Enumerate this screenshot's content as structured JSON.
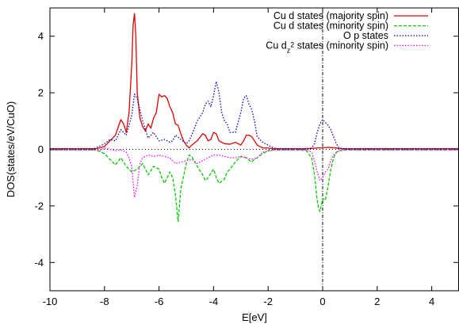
{
  "chart_data": {
    "type": "line",
    "xlabel": "E[eV]",
    "ylabel": "DOS(states/eV/CuO)",
    "xlim": [
      -10,
      5
    ],
    "ylim": [
      -5,
      5
    ],
    "x_ticks": [
      -10,
      -8,
      -6,
      -4,
      -2,
      0,
      2,
      4
    ],
    "y_ticks": [
      -4,
      -2,
      0,
      2,
      4
    ],
    "grid": false,
    "legend_position": "top-right",
    "reference_lines": [
      {
        "axis": "y",
        "value": 0,
        "style": "dotted"
      },
      {
        "axis": "x",
        "value": 0,
        "style": "dash-dot"
      }
    ],
    "series": [
      {
        "name": "Cu d states (majority spin)",
        "color": "#e00000",
        "dash": "solid",
        "x": [
          -10,
          -8.3,
          -8,
          -7.8,
          -7.6,
          -7.4,
          -7.3,
          -7.2,
          -7.1,
          -7.0,
          -6.95,
          -6.9,
          -6.85,
          -6.8,
          -6.7,
          -6.6,
          -6.5,
          -6.4,
          -6.3,
          -6.2,
          -6.1,
          -6.0,
          -5.9,
          -5.8,
          -5.7,
          -5.6,
          -5.5,
          -5.4,
          -5.3,
          -5.2,
          -5.1,
          -5.0,
          -4.9,
          -4.8,
          -4.6,
          -4.4,
          -4.3,
          -4.2,
          -4.1,
          -4.0,
          -3.9,
          -3.8,
          -3.7,
          -3.6,
          -3.4,
          -3.2,
          -3.0,
          -2.9,
          -2.8,
          -2.7,
          -2.6,
          -2.5,
          -2.4,
          -2.2,
          -2.0,
          -1.8,
          -1.6,
          -1.4,
          -1.2,
          -1.0,
          -0.8,
          -0.6,
          -0.4,
          -0.2,
          0,
          0.2,
          0.4,
          0.6,
          0.8,
          1.0,
          1.5,
          2,
          3,
          4,
          5
        ],
        "y": [
          0.02,
          0.02,
          0.1,
          0.3,
          0.5,
          1.05,
          0.9,
          0.6,
          1.3,
          3.0,
          4.4,
          4.8,
          4.0,
          2.0,
          1.1,
          0.8,
          0.65,
          0.9,
          0.75,
          1.1,
          1.3,
          1.95,
          1.85,
          1.9,
          1.8,
          1.5,
          1.3,
          0.9,
          0.85,
          0.55,
          0.3,
          0.15,
          0.05,
          0.15,
          0.3,
          0.55,
          0.5,
          0.3,
          0.35,
          0.6,
          0.55,
          0.3,
          0.25,
          0.2,
          0.18,
          0.25,
          0.15,
          0.3,
          0.5,
          0.5,
          0.45,
          0.3,
          0.15,
          0.05,
          0.05,
          0.02,
          0.02,
          0.02,
          0.02,
          0.02,
          0.02,
          0.02,
          0.03,
          0.05,
          0.06,
          0.07,
          0.06,
          0.03,
          0.02,
          0.02,
          0.02,
          0.02,
          0.02,
          0.02,
          0.02
        ]
      },
      {
        "name": "Cu d states (minority spin)",
        "color": "#00cc00",
        "dash": "dashed",
        "x": [
          -10,
          -8.3,
          -8,
          -7.8,
          -7.6,
          -7.4,
          -7.2,
          -7.0,
          -6.9,
          -6.8,
          -6.6,
          -6.4,
          -6.2,
          -6.0,
          -5.9,
          -5.8,
          -5.6,
          -5.5,
          -5.4,
          -5.3,
          -5.2,
          -5.0,
          -4.9,
          -4.8,
          -4.6,
          -4.4,
          -4.3,
          -4.2,
          -4.0,
          -3.9,
          -3.8,
          -3.6,
          -3.5,
          -3.4,
          -3.2,
          -3.0,
          -2.8,
          -2.6,
          -2.5,
          -2.4,
          -2.2,
          -2.0,
          -1.8,
          -1.6,
          -1.4,
          -1.2,
          -1.0,
          -0.8,
          -0.6,
          -0.4,
          -0.3,
          -0.2,
          -0.15,
          -0.1,
          0,
          0.1,
          0.2,
          0.3,
          0.4,
          0.5,
          0.6,
          0.8,
          1.0,
          2,
          3,
          4,
          5
        ],
        "y": [
          -0.02,
          -0.02,
          -0.15,
          -0.35,
          -0.55,
          -0.3,
          -0.6,
          -0.8,
          -0.75,
          -0.7,
          -0.5,
          -0.9,
          -0.6,
          -0.7,
          -1.0,
          -1.2,
          -0.8,
          -1.0,
          -1.6,
          -2.55,
          -1.4,
          -0.5,
          -0.2,
          -0.25,
          -0.6,
          -0.9,
          -1.1,
          -1.0,
          -0.7,
          -1.0,
          -1.2,
          -1.05,
          -0.8,
          -0.7,
          -0.45,
          -0.25,
          -0.3,
          -0.45,
          -0.35,
          -0.3,
          -0.15,
          -0.05,
          -0.02,
          -0.02,
          -0.02,
          -0.02,
          -0.02,
          -0.02,
          -0.05,
          -0.3,
          -0.9,
          -1.8,
          -2.05,
          -2.2,
          -1.75,
          -1.8,
          -1.3,
          -0.7,
          -0.3,
          -0.1,
          -0.05,
          -0.02,
          -0.02,
          -0.02,
          -0.02,
          -0.02,
          -0.02
        ]
      },
      {
        "name": "O p states",
        "color": "#0000cc",
        "dash": "dotted",
        "x": [
          -10,
          -8.4,
          -8.2,
          -8.0,
          -7.8,
          -7.6,
          -7.4,
          -7.2,
          -7.0,
          -6.9,
          -6.8,
          -6.6,
          -6.4,
          -6.2,
          -6.0,
          -5.8,
          -5.6,
          -5.5,
          -5.4,
          -5.2,
          -5.0,
          -4.9,
          -4.8,
          -4.6,
          -4.4,
          -4.3,
          -4.2,
          -4.1,
          -4.0,
          -3.9,
          -3.8,
          -3.7,
          -3.6,
          -3.5,
          -3.4,
          -3.2,
          -3.0,
          -2.9,
          -2.8,
          -2.7,
          -2.6,
          -2.5,
          -2.4,
          -2.2,
          -2.0,
          -1.8,
          -1.6,
          -1.4,
          -1.0,
          -0.6,
          -0.4,
          -0.3,
          -0.2,
          -0.1,
          0,
          0.1,
          0.2,
          0.3,
          0.4,
          0.5,
          0.6,
          0.8,
          1.0,
          2,
          3,
          4,
          5
        ],
        "y": [
          0.02,
          0.02,
          0.1,
          0.2,
          0.35,
          0.3,
          0.7,
          0.5,
          1.2,
          1.95,
          1.8,
          1.0,
          0.4,
          0.6,
          0.3,
          0.35,
          0.25,
          0.3,
          0.5,
          0.35,
          0.2,
          0.3,
          0.5,
          1.0,
          1.3,
          1.6,
          1.7,
          1.5,
          1.9,
          2.4,
          2.0,
          1.3,
          1.0,
          0.9,
          0.6,
          0.6,
          1.3,
          1.8,
          1.9,
          1.6,
          1.4,
          1.0,
          0.45,
          0.25,
          0.15,
          0.05,
          0.02,
          0.02,
          0.02,
          0.02,
          0.05,
          0.2,
          0.6,
          0.9,
          1.05,
          0.95,
          0.85,
          0.7,
          0.45,
          0.2,
          0.05,
          0.02,
          0.02,
          0.02,
          0.02,
          0.02,
          0.02
        ]
      },
      {
        "name": "Cu d_{z^2} states (minority spin)",
        "color": "#ff00ff",
        "dash": "dotted",
        "x": [
          -10,
          -8.4,
          -8.2,
          -8.0,
          -7.8,
          -7.6,
          -7.4,
          -7.2,
          -7.1,
          -7.0,
          -6.9,
          -6.8,
          -6.7,
          -6.6,
          -6.4,
          -6.2,
          -6.0,
          -5.8,
          -5.6,
          -5.4,
          -5.2,
          -5.0,
          -4.8,
          -4.6,
          -4.4,
          -4.2,
          -4.0,
          -3.8,
          -3.6,
          -3.4,
          -3.2,
          -3.0,
          -2.8,
          -2.6,
          -2.4,
          -2.2,
          -2.0,
          -1.8,
          -1.4,
          -1.0,
          -0.6,
          -0.4,
          -0.3,
          -0.2,
          -0.1,
          0,
          0.1,
          0.2,
          0.3,
          0.4,
          0.6,
          0.8,
          1.0,
          2,
          3,
          4,
          5
        ],
        "y": [
          -0.02,
          -0.02,
          -0.05,
          0.05,
          0.0,
          -0.05,
          -0.02,
          -0.1,
          -0.3,
          -0.6,
          -1.7,
          -1.3,
          -0.5,
          -0.3,
          -0.2,
          -0.25,
          -0.2,
          -0.25,
          -0.3,
          -0.5,
          -0.45,
          -0.4,
          -0.35,
          -0.5,
          -0.4,
          -0.3,
          -0.2,
          -0.2,
          -0.25,
          -0.3,
          -0.3,
          -0.25,
          -0.3,
          -0.35,
          -0.3,
          -0.1,
          -0.05,
          -0.02,
          -0.02,
          -0.02,
          -0.02,
          -0.1,
          -0.4,
          -0.8,
          -1.1,
          -1.0,
          -0.8,
          -0.7,
          -0.4,
          -0.2,
          -0.05,
          -0.02,
          -0.02,
          -0.02,
          -0.02,
          -0.02,
          -0.02
        ]
      }
    ]
  }
}
